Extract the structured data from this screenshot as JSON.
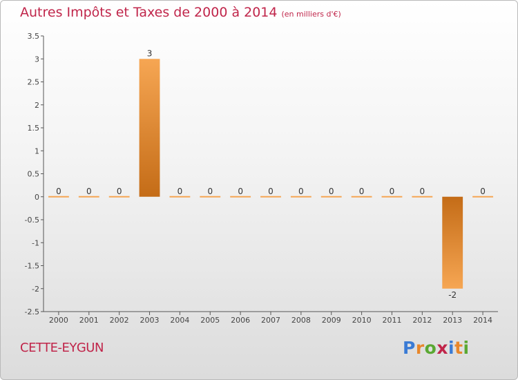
{
  "header": {
    "title": "Autres Impôts et Taxes de 2000 à 2014",
    "subtitle": "(en milliers d'€)"
  },
  "footer": {
    "place": "CETTE-EYGUN",
    "logo": {
      "letters": [
        "P",
        "r",
        "o",
        "x",
        "i",
        "t",
        "i"
      ],
      "colors": [
        "#3a7bd5",
        "#e8872b",
        "#5aa832",
        "#c0254a",
        "#3a7bd5",
        "#e8872b",
        "#5aa832"
      ]
    }
  },
  "chart_data": {
    "type": "bar",
    "title": "Autres Impôts et Taxes de 2000 à 2014",
    "subtitle": "(en milliers d'€)",
    "categories": [
      "2000",
      "2001",
      "2002",
      "2003",
      "2004",
      "2005",
      "2006",
      "2007",
      "2008",
      "2009",
      "2010",
      "2011",
      "2012",
      "2013",
      "2014"
    ],
    "values": [
      0,
      0,
      0,
      3,
      0,
      0,
      0,
      0,
      0,
      0,
      0,
      0,
      0,
      -2,
      0
    ],
    "data_labels": [
      "0",
      "0",
      "0",
      "3",
      "0",
      "0",
      "0",
      "0",
      "0",
      "0",
      "0",
      "0",
      "0",
      "-2",
      "0"
    ],
    "ylim": [
      -2.5,
      3.5
    ],
    "yticks": [
      3.5,
      3,
      2.5,
      2,
      1.5,
      1,
      0.5,
      0,
      -0.5,
      -1,
      -1.5,
      -2,
      -2.5
    ],
    "ytick_labels": [
      "3.5",
      "3",
      "2.5",
      "2",
      "1.5",
      "1",
      "0.5",
      "0",
      "-0.5",
      "-1",
      "-1.5",
      "-2",
      "-2.5"
    ],
    "grid": false,
    "colors": {
      "bar_light": "#f6a653",
      "bar_dark": "#c46c17",
      "axis": "#555555"
    }
  }
}
